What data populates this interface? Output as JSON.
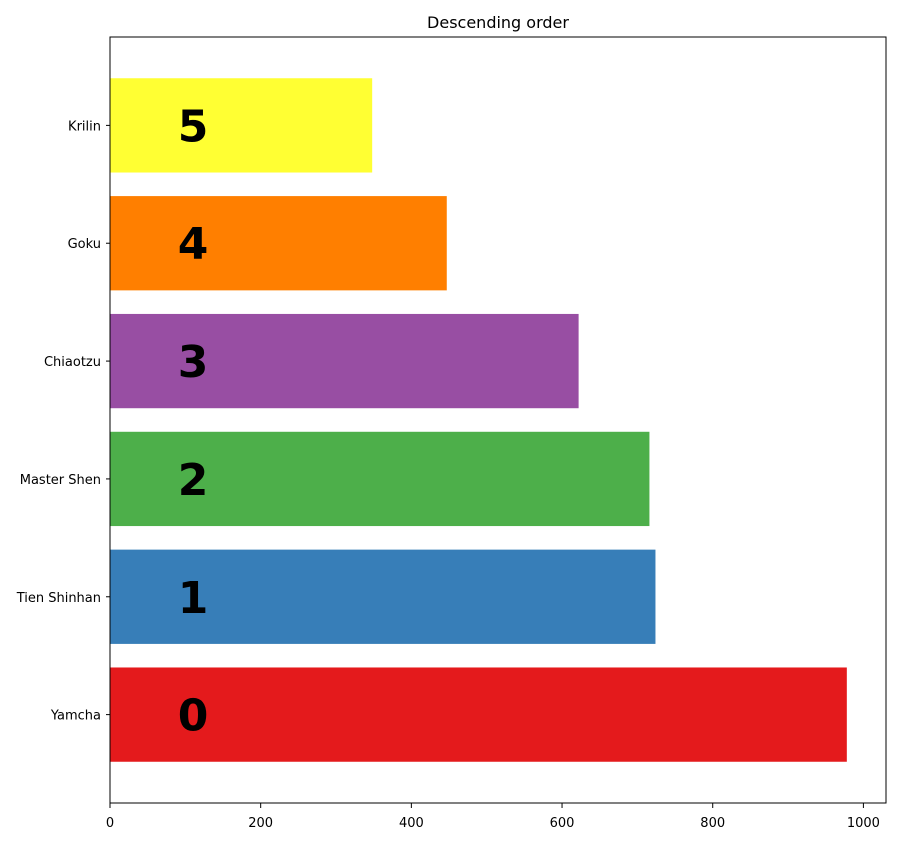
{
  "chart_data": {
    "type": "bar",
    "orientation": "horizontal",
    "title": "Descending order",
    "xlabel": "",
    "ylabel": "",
    "xlim": [
      0,
      1030
    ],
    "xticks": [
      0,
      200,
      400,
      600,
      800,
      1000
    ],
    "categories": [
      "Yamcha",
      "Tien Shinhan",
      "Master Shen",
      "Chiaotzu",
      "Goku",
      "Krilin"
    ],
    "values": [
      978,
      724,
      716,
      622,
      447,
      348
    ],
    "bar_labels": [
      "0",
      "1",
      "2",
      "3",
      "4",
      "5"
    ],
    "colors": [
      "#e41a1c",
      "#377eb8",
      "#4daf4a",
      "#984ea3",
      "#ff7f00",
      "#ffff33"
    ],
    "grid": false,
    "legend": "none"
  }
}
